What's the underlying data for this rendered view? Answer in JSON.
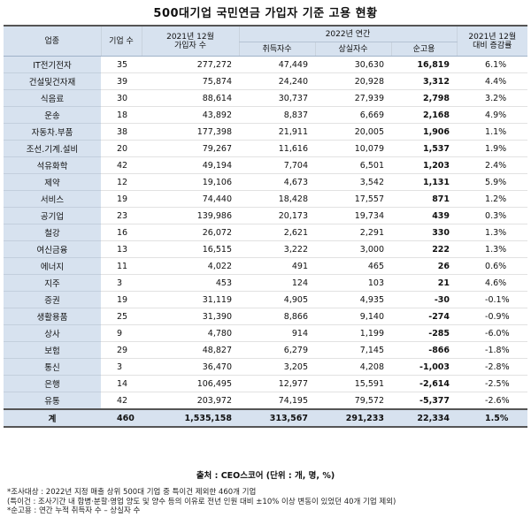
{
  "title": "500대기업 국민연금 가입자 기준 고용 현황",
  "header": {
    "industry": "업종",
    "company_count": "기업 수",
    "subscribers_2021_l1": "2021년 12월",
    "subscribers_2021_l2": "가입자 수",
    "annual_2022": "2022년 연간",
    "hired": "취득자수",
    "lost": "상실자수",
    "net": "순고용",
    "rate_l1": "2021년 12월",
    "rate_l2": "대비 증감률"
  },
  "rows": [
    {
      "industry": "IT전기전자",
      "companies": "35",
      "subscribers": "277,272",
      "hired": "47,449",
      "lost": "30,630",
      "net": "16,819",
      "rate": "6.1%"
    },
    {
      "industry": "건설및건자재",
      "companies": "39",
      "subscribers": "75,874",
      "hired": "24,240",
      "lost": "20,928",
      "net": "3,312",
      "rate": "4.4%"
    },
    {
      "industry": "식음료",
      "companies": "30",
      "subscribers": "88,614",
      "hired": "30,737",
      "lost": "27,939",
      "net": "2,798",
      "rate": "3.2%"
    },
    {
      "industry": "운송",
      "companies": "18",
      "subscribers": "43,892",
      "hired": "8,837",
      "lost": "6,669",
      "net": "2,168",
      "rate": "4.9%"
    },
    {
      "industry": "자동차.부품",
      "companies": "38",
      "subscribers": "177,398",
      "hired": "21,911",
      "lost": "20,005",
      "net": "1,906",
      "rate": "1.1%"
    },
    {
      "industry": "조선.기계.설비",
      "companies": "20",
      "subscribers": "79,267",
      "hired": "11,616",
      "lost": "10,079",
      "net": "1,537",
      "rate": "1.9%"
    },
    {
      "industry": "석유화학",
      "companies": "42",
      "subscribers": "49,194",
      "hired": "7,704",
      "lost": "6,501",
      "net": "1,203",
      "rate": "2.4%"
    },
    {
      "industry": "제약",
      "companies": "12",
      "subscribers": "19,106",
      "hired": "4,673",
      "lost": "3,542",
      "net": "1,131",
      "rate": "5.9%"
    },
    {
      "industry": "서비스",
      "companies": "19",
      "subscribers": "74,440",
      "hired": "18,428",
      "lost": "17,557",
      "net": "871",
      "rate": "1.2%"
    },
    {
      "industry": "공기업",
      "companies": "23",
      "subscribers": "139,986",
      "hired": "20,173",
      "lost": "19,734",
      "net": "439",
      "rate": "0.3%"
    },
    {
      "industry": "철강",
      "companies": "16",
      "subscribers": "26,072",
      "hired": "2,621",
      "lost": "2,291",
      "net": "330",
      "rate": "1.3%"
    },
    {
      "industry": "여신금융",
      "companies": "13",
      "subscribers": "16,515",
      "hired": "3,222",
      "lost": "3,000",
      "net": "222",
      "rate": "1.3%"
    },
    {
      "industry": "에너지",
      "companies": "11",
      "subscribers": "4,022",
      "hired": "491",
      "lost": "465",
      "net": "26",
      "rate": "0.6%"
    },
    {
      "industry": "지주",
      "companies": "3",
      "subscribers": "453",
      "hired": "124",
      "lost": "103",
      "net": "21",
      "rate": "4.6%"
    },
    {
      "industry": "증권",
      "companies": "19",
      "subscribers": "31,119",
      "hired": "4,905",
      "lost": "4,935",
      "net": "-30",
      "rate": "-0.1%"
    },
    {
      "industry": "생활용품",
      "companies": "25",
      "subscribers": "31,390",
      "hired": "8,866",
      "lost": "9,140",
      "net": "-274",
      "rate": "-0.9%"
    },
    {
      "industry": "상사",
      "companies": "9",
      "subscribers": "4,780",
      "hired": "914",
      "lost": "1,199",
      "net": "-285",
      "rate": "-6.0%"
    },
    {
      "industry": "보험",
      "companies": "29",
      "subscribers": "48,827",
      "hired": "6,279",
      "lost": "7,145",
      "net": "-866",
      "rate": "-1.8%"
    },
    {
      "industry": "통신",
      "companies": "3",
      "subscribers": "36,470",
      "hired": "3,205",
      "lost": "4,208",
      "net": "-1,003",
      "rate": "-2.8%"
    },
    {
      "industry": "은행",
      "companies": "14",
      "subscribers": "106,495",
      "hired": "12,977",
      "lost": "15,591",
      "net": "-2,614",
      "rate": "-2.5%"
    },
    {
      "industry": "유통",
      "companies": "42",
      "subscribers": "203,972",
      "hired": "74,195",
      "lost": "79,572",
      "net": "-5,377",
      "rate": "-2.6%"
    }
  ],
  "total": {
    "industry": "계",
    "companies": "460",
    "subscribers": "1,535,158",
    "hired": "313,567",
    "lost": "291,233",
    "net": "22,334",
    "rate": "1.5%"
  },
  "source": "출처 : CEO스코어 (단위 : 개, 명, %)",
  "notes": [
    "*조사대상 : 2022년 지정 매출 상위 500대 기업 중 특이건 제외한 460개 기업",
    "(특이건 : 조사기간 내 합병·분할·영업 양도 및 양수 등의 이유로 전년 인원 대비 ±10% 이상 변동이 있었던 40개 기업 제외)",
    "*순고용 : 연간 누적 취득자 수 – 상실자 수"
  ]
}
